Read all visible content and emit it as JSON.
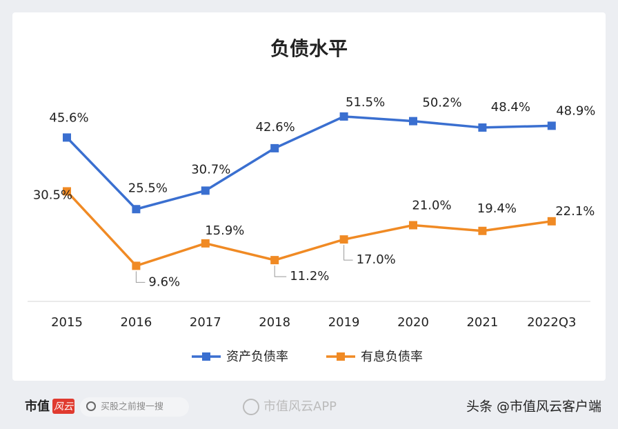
{
  "chart_data": {
    "type": "line",
    "title": "负债水平",
    "categories": [
      "2015",
      "2016",
      "2017",
      "2018",
      "2019",
      "2020",
      "2021",
      "2022Q3"
    ],
    "series": [
      {
        "name": "资产负债率",
        "color": "#3a6fd0",
        "values": [
          45.6,
          25.5,
          30.7,
          42.6,
          51.5,
          50.2,
          48.4,
          48.9
        ],
        "value_labels": [
          "45.6%",
          "25.5%",
          "30.7%",
          "42.6%",
          "51.5%",
          "50.2%",
          "48.4%",
          "48.9%"
        ]
      },
      {
        "name": "有息负债率",
        "color": "#f08a24",
        "values": [
          30.5,
          9.6,
          15.9,
          11.2,
          17.0,
          21.0,
          19.4,
          22.1
        ],
        "value_labels": [
          "30.5%",
          "9.6%",
          "15.9%",
          "11.2%",
          "17.0%",
          "21.0%",
          "19.4%",
          "22.1%"
        ]
      }
    ],
    "ylim": [
      0,
      60
    ],
    "legend": "bottom"
  },
  "footer": {
    "brand": "市值",
    "brand_mark": "风云",
    "search": "买股之前搜一搜",
    "watermark": "市值风云APP",
    "source": "头条 @市值风云客户端"
  }
}
